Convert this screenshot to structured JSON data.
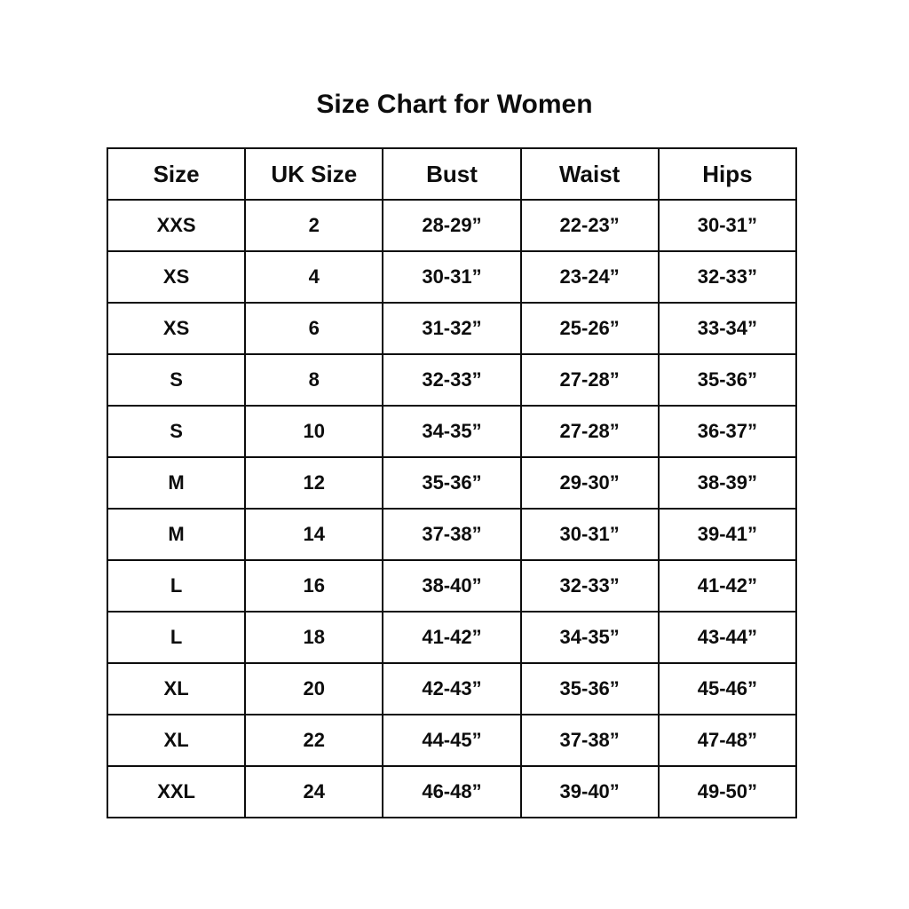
{
  "page": {
    "title": "Size Chart for Women"
  },
  "chart_data": {
    "type": "table",
    "title": "Size Chart for Women",
    "headers": [
      "Size",
      "UK Size",
      "Bust",
      "Waist",
      "Hips"
    ],
    "rows": [
      [
        "XXS",
        "2",
        "28-29”",
        "22-23”",
        "30-31”"
      ],
      [
        "XS",
        "4",
        "30-31”",
        "23-24”",
        "32-33”"
      ],
      [
        "XS",
        "6",
        "31-32”",
        "25-26”",
        "33-34”"
      ],
      [
        "S",
        "8",
        "32-33”",
        "27-28”",
        "35-36”"
      ],
      [
        "S",
        "10",
        "34-35”",
        "27-28”",
        "36-37”"
      ],
      [
        "M",
        "12",
        "35-36”",
        "29-30”",
        "38-39”"
      ],
      [
        "M",
        "14",
        "37-38”",
        "30-31”",
        "39-41”"
      ],
      [
        "L",
        "16",
        "38-40”",
        "32-33”",
        "41-42”"
      ],
      [
        "L",
        "18",
        "41-42”",
        "34-35”",
        "43-44”"
      ],
      [
        "XL",
        "20",
        "42-43”",
        "35-36”",
        "45-46”"
      ],
      [
        "XL",
        "22",
        "44-45”",
        "37-38”",
        "47-48”"
      ],
      [
        "XXL",
        "24",
        "46-48”",
        "39-40”",
        "49-50”"
      ]
    ],
    "layout": {
      "grid": "on",
      "border_color": "#0d0d0d",
      "background_color": "#ffffff",
      "text_color": "#0d0d0d"
    }
  }
}
